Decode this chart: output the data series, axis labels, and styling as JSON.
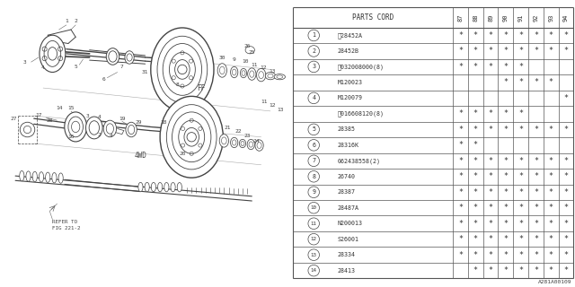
{
  "title": "A281A00109",
  "bg_color": "#ffffff",
  "col_headers": [
    "PARTS CORD",
    "87",
    "88",
    "89",
    "90",
    "91",
    "92",
    "93",
    "94"
  ],
  "rows": [
    {
      "num": "1",
      "mark": "W",
      "part": "28452A",
      "stars": [
        1,
        1,
        1,
        1,
        1,
        1,
        1,
        1
      ]
    },
    {
      "num": "2",
      "mark": "",
      "part": "28452B",
      "stars": [
        1,
        1,
        1,
        1,
        1,
        1,
        1,
        1
      ]
    },
    {
      "num": "3",
      "mark": "W",
      "part": "032008000(8)",
      "stars": [
        1,
        1,
        1,
        1,
        1,
        0,
        0,
        0
      ]
    },
    {
      "num": "",
      "mark": "",
      "part": "M120023",
      "stars": [
        0,
        0,
        0,
        1,
        1,
        1,
        1,
        0
      ]
    },
    {
      "num": "4",
      "mark": "",
      "part": "M120079",
      "stars": [
        0,
        0,
        0,
        0,
        0,
        0,
        0,
        1
      ]
    },
    {
      "num": "",
      "mark": "B",
      "part": "016608120(8)",
      "stars": [
        1,
        1,
        1,
        1,
        1,
        0,
        0,
        0
      ]
    },
    {
      "num": "5",
      "mark": "",
      "part": "28385",
      "stars": [
        1,
        1,
        1,
        1,
        1,
        1,
        1,
        1
      ]
    },
    {
      "num": "6",
      "mark": "",
      "part": "28316K",
      "stars": [
        1,
        1,
        0,
        0,
        0,
        0,
        0,
        0
      ]
    },
    {
      "num": "7",
      "mark": "",
      "part": "062438558(2)",
      "stars": [
        1,
        1,
        1,
        1,
        1,
        1,
        1,
        1
      ]
    },
    {
      "num": "8",
      "mark": "",
      "part": "26740",
      "stars": [
        1,
        1,
        1,
        1,
        1,
        1,
        1,
        1
      ]
    },
    {
      "num": "9",
      "mark": "",
      "part": "28387",
      "stars": [
        1,
        1,
        1,
        1,
        1,
        1,
        1,
        1
      ]
    },
    {
      "num": "10",
      "mark": "",
      "part": "28487A",
      "stars": [
        1,
        1,
        1,
        1,
        1,
        1,
        1,
        1
      ]
    },
    {
      "num": "11",
      "mark": "",
      "part": "N200013",
      "stars": [
        1,
        1,
        1,
        1,
        1,
        1,
        1,
        1
      ]
    },
    {
      "num": "12",
      "mark": "",
      "part": "S26001",
      "stars": [
        1,
        1,
        1,
        1,
        1,
        1,
        1,
        1
      ]
    },
    {
      "num": "13",
      "mark": "",
      "part": "28334",
      "stars": [
        1,
        1,
        1,
        1,
        1,
        1,
        1,
        1
      ]
    },
    {
      "num": "14",
      "mark": "",
      "part": "28413",
      "stars": [
        0,
        1,
        1,
        1,
        1,
        1,
        1,
        1
      ]
    }
  ]
}
